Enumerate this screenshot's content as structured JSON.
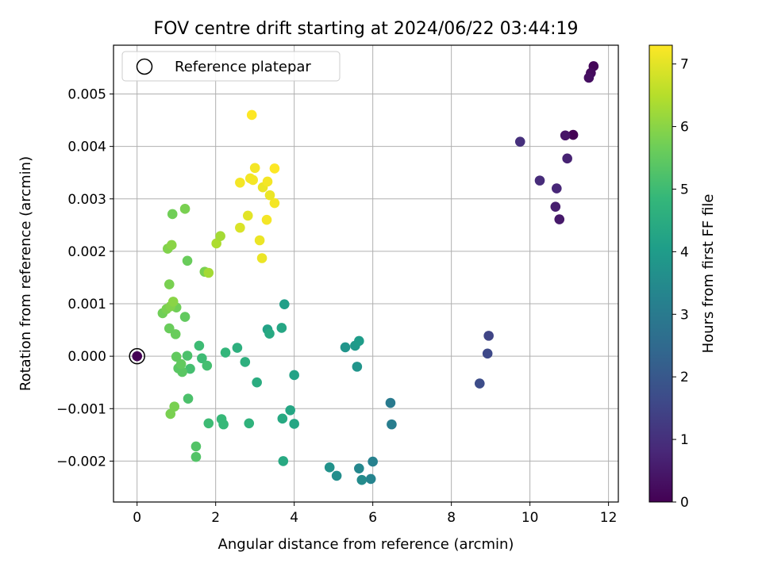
{
  "chart_data": {
    "type": "scatter",
    "title": "FOV centre drift starting at 2024/06/22 03:44:19",
    "xlabel": "Angular distance from reference (arcmin)",
    "ylabel": "Rotation from reference (arcmin)",
    "xlim": [
      -0.6,
      12.25
    ],
    "ylim": [
      -0.00278,
      0.00593
    ],
    "xticks": [
      0,
      2,
      4,
      6,
      8,
      10,
      12
    ],
    "xtick_labels": [
      "0",
      "2",
      "4",
      "6",
      "8",
      "10",
      "12"
    ],
    "yticks": [
      -0.002,
      -0.001,
      0.0,
      0.001,
      0.002,
      0.003,
      0.004,
      0.005
    ],
    "ytick_labels": [
      "−0.002",
      "−0.001",
      "0.000",
      "0.001",
      "0.002",
      "0.003",
      "0.004",
      "0.005"
    ],
    "grid": true,
    "legend": {
      "position": "top-left",
      "label": "Reference platepar"
    },
    "reference_point": {
      "x": 0,
      "y": 0
    },
    "colorbar": {
      "label": "Hours from first FF file",
      "colormap": "viridis",
      "range": [
        0,
        7.3
      ],
      "ticks": [
        0,
        1,
        2,
        3,
        4,
        5,
        6,
        7
      ],
      "tick_labels": [
        "0",
        "1",
        "2",
        "3",
        "4",
        "5",
        "6",
        "7"
      ]
    },
    "points": [
      {
        "x": 11.1,
        "y": 0.00422,
        "h": 0.0
      },
      {
        "x": 11.62,
        "y": 0.00553,
        "h": 0.1
      },
      {
        "x": 11.55,
        "y": 0.0054,
        "h": 0.2
      },
      {
        "x": 11.5,
        "y": 0.00531,
        "h": 0.3
      },
      {
        "x": 10.9,
        "y": 0.00421,
        "h": 0.4
      },
      {
        "x": 10.75,
        "y": 0.00261,
        "h": 0.5
      },
      {
        "x": 10.65,
        "y": 0.00285,
        "h": 0.6
      },
      {
        "x": 10.95,
        "y": 0.00377,
        "h": 0.7
      },
      {
        "x": 10.68,
        "y": 0.0032,
        "h": 0.8
      },
      {
        "x": 10.25,
        "y": 0.00335,
        "h": 0.9
      },
      {
        "x": 9.75,
        "y": 0.00409,
        "h": 1.0
      },
      {
        "x": 8.95,
        "y": 0.00039,
        "h": 1.5
      },
      {
        "x": 8.92,
        "y": 5e-05,
        "h": 1.6
      },
      {
        "x": 8.72,
        "y": -0.00052,
        "h": 1.7
      },
      {
        "x": 6.45,
        "y": -0.00089,
        "h": 3.0
      },
      {
        "x": 6.48,
        "y": -0.0013,
        "h": 3.1
      },
      {
        "x": 6.0,
        "y": -0.00201,
        "h": 3.2
      },
      {
        "x": 5.95,
        "y": -0.00234,
        "h": 3.3
      },
      {
        "x": 5.65,
        "y": -0.00214,
        "h": 3.4
      },
      {
        "x": 5.72,
        "y": -0.00236,
        "h": 3.5
      },
      {
        "x": 5.08,
        "y": -0.00228,
        "h": 3.6
      },
      {
        "x": 4.9,
        "y": -0.00212,
        "h": 3.7
      },
      {
        "x": 5.3,
        "y": 0.00017,
        "h": 3.8
      },
      {
        "x": 5.55,
        "y": 0.0002,
        "h": 3.9
      },
      {
        "x": 5.65,
        "y": 0.00029,
        "h": 4.0
      },
      {
        "x": 5.6,
        "y": -0.0002,
        "h": 3.8
      },
      {
        "x": 3.75,
        "y": 0.00099,
        "h": 4.1
      },
      {
        "x": 3.32,
        "y": 0.00051,
        "h": 4.2
      },
      {
        "x": 3.68,
        "y": 0.00054,
        "h": 4.3
      },
      {
        "x": 3.37,
        "y": 0.00043,
        "h": 4.4
      },
      {
        "x": 4.0,
        "y": -0.00036,
        "h": 4.2
      },
      {
        "x": 3.9,
        "y": -0.00103,
        "h": 4.3
      },
      {
        "x": 3.7,
        "y": -0.00119,
        "h": 4.4
      },
      {
        "x": 4.0,
        "y": -0.00129,
        "h": 4.3
      },
      {
        "x": 3.72,
        "y": -0.002,
        "h": 4.4
      },
      {
        "x": 3.05,
        "y": -0.0005,
        "h": 4.5
      },
      {
        "x": 2.75,
        "y": -0.00011,
        "h": 4.6
      },
      {
        "x": 2.55,
        "y": 0.00016,
        "h": 4.6
      },
      {
        "x": 2.85,
        "y": -0.00128,
        "h": 4.7
      },
      {
        "x": 2.25,
        "y": 7e-05,
        "h": 4.8
      },
      {
        "x": 2.15,
        "y": -0.0012,
        "h": 4.9
      },
      {
        "x": 2.2,
        "y": -0.0013,
        "h": 4.9
      },
      {
        "x": 1.65,
        "y": -4e-05,
        "h": 5.0
      },
      {
        "x": 1.58,
        "y": 0.0002,
        "h": 5.0
      },
      {
        "x": 1.78,
        "y": -0.00018,
        "h": 5.1
      },
      {
        "x": 1.82,
        "y": -0.00128,
        "h": 5.0
      },
      {
        "x": 1.35,
        "y": -0.00024,
        "h": 5.1
      },
      {
        "x": 1.28,
        "y": 1e-05,
        "h": 5.2
      },
      {
        "x": 1.3,
        "y": -0.00081,
        "h": 5.2
      },
      {
        "x": 1.5,
        "y": -0.00172,
        "h": 5.3
      },
      {
        "x": 1.5,
        "y": -0.00192,
        "h": 5.3
      },
      {
        "x": 1.15,
        "y": -0.0003,
        "h": 5.4
      },
      {
        "x": 1.05,
        "y": -0.00023,
        "h": 5.4
      },
      {
        "x": 1.0,
        "y": -1e-05,
        "h": 5.5
      },
      {
        "x": 1.12,
        "y": -0.00015,
        "h": 5.5
      },
      {
        "x": 0.98,
        "y": 0.00042,
        "h": 5.6
      },
      {
        "x": 1.22,
        "y": 0.00075,
        "h": 5.5
      },
      {
        "x": 0.82,
        "y": 0.00053,
        "h": 5.6
      },
      {
        "x": 0.95,
        "y": -0.00096,
        "h": 5.8
      },
      {
        "x": 0.85,
        "y": -0.0011,
        "h": 5.8
      },
      {
        "x": 1.0,
        "y": 0.00093,
        "h": 5.7
      },
      {
        "x": 0.65,
        "y": 0.00082,
        "h": 5.7
      },
      {
        "x": 0.75,
        "y": 0.0009,
        "h": 5.8
      },
      {
        "x": 0.85,
        "y": 0.00095,
        "h": 5.9
      },
      {
        "x": 0.92,
        "y": 0.00104,
        "h": 6.0
      },
      {
        "x": 0.82,
        "y": 0.00137,
        "h": 5.8
      },
      {
        "x": 1.28,
        "y": 0.00182,
        "h": 5.6
      },
      {
        "x": 0.78,
        "y": 0.00205,
        "h": 5.9
      },
      {
        "x": 0.88,
        "y": 0.00212,
        "h": 6.0
      },
      {
        "x": 1.72,
        "y": 0.00161,
        "h": 5.8
      },
      {
        "x": 1.82,
        "y": 0.00159,
        "h": 6.3
      },
      {
        "x": 0.9,
        "y": 0.00271,
        "h": 5.7
      },
      {
        "x": 1.22,
        "y": 0.00281,
        "h": 5.8
      },
      {
        "x": 2.02,
        "y": 0.00215,
        "h": 6.4
      },
      {
        "x": 2.12,
        "y": 0.00229,
        "h": 6.3
      },
      {
        "x": 2.62,
        "y": 0.00245,
        "h": 6.9
      },
      {
        "x": 2.82,
        "y": 0.00268,
        "h": 7.0
      },
      {
        "x": 3.12,
        "y": 0.00221,
        "h": 7.1
      },
      {
        "x": 3.18,
        "y": 0.00187,
        "h": 7.1
      },
      {
        "x": 3.3,
        "y": 0.0026,
        "h": 7.2
      },
      {
        "x": 3.5,
        "y": 0.00292,
        "h": 7.2
      },
      {
        "x": 3.38,
        "y": 0.00307,
        "h": 7.1
      },
      {
        "x": 3.2,
        "y": 0.00322,
        "h": 7.1
      },
      {
        "x": 3.32,
        "y": 0.00333,
        "h": 7.2
      },
      {
        "x": 2.62,
        "y": 0.00331,
        "h": 7.2
      },
      {
        "x": 2.88,
        "y": 0.00339,
        "h": 7.2
      },
      {
        "x": 2.95,
        "y": 0.00336,
        "h": 7.2
      },
      {
        "x": 3.0,
        "y": 0.00359,
        "h": 7.2
      },
      {
        "x": 3.5,
        "y": 0.00358,
        "h": 7.3
      },
      {
        "x": 2.92,
        "y": 0.0046,
        "h": 7.3
      }
    ]
  }
}
